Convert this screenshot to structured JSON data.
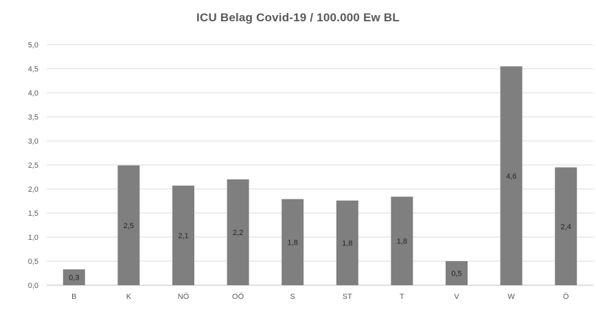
{
  "chart_data": {
    "type": "bar",
    "title": "ICU Belag Covid-19 / 100.000 Ew BL",
    "categories": [
      "B",
      "K",
      "NÖ",
      "OÖ",
      "S",
      "ST",
      "T",
      "V",
      "W",
      "Ö"
    ],
    "values": [
      0.33,
      2.49,
      2.07,
      2.2,
      1.79,
      1.76,
      1.84,
      0.5,
      4.55,
      2.45
    ],
    "data_labels": [
      "0,3",
      "2,5",
      "2,1",
      "2,2",
      "1,8",
      "1,8",
      "1,8",
      "0,5",
      "4,6",
      "2,4"
    ],
    "y_tick_labels": [
      "0,0",
      "0,5",
      "1,0",
      "1,5",
      "2,0",
      "2,5",
      "3,0",
      "3,5",
      "4,0",
      "4,5",
      "5,0"
    ],
    "ylim": [
      0,
      5
    ],
    "ystep": 0.5,
    "grid": true,
    "legend": "none",
    "bar_color": "#7f7f7f",
    "grid_color": "#d9d9d9"
  }
}
